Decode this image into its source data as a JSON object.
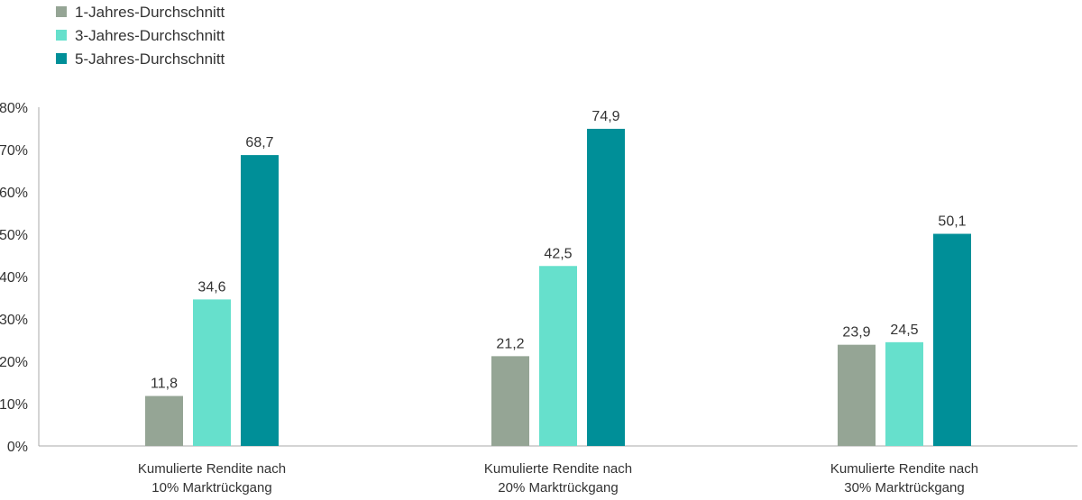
{
  "chart_data": {
    "type": "bar",
    "title": "",
    "xlabel": "",
    "ylabel": "",
    "categories": [
      [
        "Kumulierte Rendite nach",
        "10% Marktrückgang"
      ],
      [
        "Kumulierte Rendite nach",
        "20% Marktrückgang"
      ],
      [
        "Kumulierte Rendite nach",
        "30% Marktrückgang"
      ]
    ],
    "series": [
      {
        "name": "1-Jahres-Durchschnitt",
        "color": "#95a595",
        "values": [
          11.8,
          21.2,
          23.9
        ],
        "labels": [
          "11,8",
          "21,2",
          "23,9"
        ]
      },
      {
        "name": "3-Jahres-Durchschnitt",
        "color": "#66e0cc",
        "values": [
          34.6,
          42.5,
          24.5
        ],
        "labels": [
          "34,6",
          "42,5",
          "24,5"
        ]
      },
      {
        "name": "5-Jahres-Durchschnitt",
        "color": "#008f98",
        "values": [
          68.7,
          74.9,
          50.1
        ],
        "labels": [
          "68,7",
          "74,9",
          "50,1"
        ]
      }
    ],
    "ylim": [
      0,
      80
    ],
    "yticks": [
      0,
      10,
      20,
      30,
      40,
      50,
      60,
      70,
      80
    ],
    "ytick_labels": [
      "0%",
      "10%",
      "20%",
      "30%",
      "40%",
      "50%",
      "60%",
      "70%",
      "80%"
    ],
    "grid": false,
    "legend_position": "top-left",
    "axis_color": "#aaaaaa",
    "text_color": "#333333"
  }
}
